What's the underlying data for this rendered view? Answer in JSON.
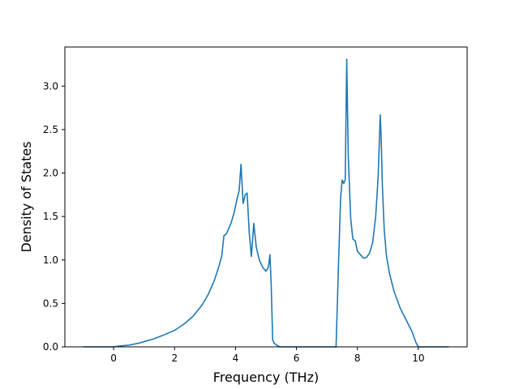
{
  "chart_data": {
    "type": "line",
    "title": "",
    "xlabel": "Frequency (THz)",
    "ylabel": "Density of States",
    "xlim": [
      -1.6,
      11.6
    ],
    "ylim": [
      0.0,
      3.45
    ],
    "grid": false,
    "legend": "none",
    "x_ticks": [
      0,
      2,
      4,
      6,
      8,
      10
    ],
    "x_tick_labels": [
      "0",
      "2",
      "4",
      "6",
      "8",
      "10"
    ],
    "y_ticks": [
      0.0,
      0.5,
      1.0,
      1.5,
      2.0,
      2.5,
      3.0
    ],
    "y_tick_labels": [
      "0.0",
      "0.5",
      "1.0",
      "1.5",
      "2.0",
      "2.5",
      "3.0"
    ],
    "series": [
      {
        "color": "#1f77b4",
        "x": [
          -1.0,
          -0.5,
          0.0,
          0.2,
          0.5,
          0.8,
          1.0,
          1.3,
          1.6,
          2.0,
          2.3,
          2.6,
          2.9,
          3.1,
          3.3,
          3.45,
          3.55,
          3.62,
          3.7,
          3.85,
          3.95,
          4.05,
          4.12,
          4.18,
          4.25,
          4.32,
          4.38,
          4.45,
          4.52,
          4.6,
          4.68,
          4.78,
          4.9,
          5.0,
          5.08,
          5.13,
          5.17,
          5.22,
          5.27,
          5.35,
          5.45,
          5.6,
          6.0,
          6.5,
          7.0,
          7.3,
          7.38,
          7.45,
          7.5,
          7.55,
          7.6,
          7.65,
          7.7,
          7.78,
          7.85,
          7.93,
          8.0,
          8.1,
          8.2,
          8.3,
          8.4,
          8.5,
          8.6,
          8.68,
          8.75,
          8.78,
          8.82,
          8.88,
          8.95,
          9.05,
          9.2,
          9.4,
          9.6,
          9.8,
          9.92,
          10.0,
          10.3,
          10.6,
          11.0
        ],
        "y": [
          0.0,
          0.0,
          0.0,
          0.01,
          0.02,
          0.04,
          0.06,
          0.09,
          0.13,
          0.19,
          0.26,
          0.35,
          0.48,
          0.6,
          0.76,
          0.92,
          1.05,
          1.28,
          1.3,
          1.42,
          1.54,
          1.7,
          1.8,
          2.1,
          1.65,
          1.75,
          1.77,
          1.32,
          1.04,
          1.42,
          1.15,
          1.0,
          0.91,
          0.87,
          0.92,
          1.06,
          0.72,
          0.08,
          0.04,
          0.02,
          0.0,
          0.0,
          0.0,
          0.0,
          0.0,
          0.0,
          0.95,
          1.72,
          1.92,
          1.88,
          1.92,
          3.31,
          2.2,
          1.48,
          1.24,
          1.22,
          1.1,
          1.06,
          1.02,
          1.03,
          1.08,
          1.2,
          1.5,
          1.95,
          2.67,
          2.4,
          1.85,
          1.35,
          1.06,
          0.85,
          0.64,
          0.45,
          0.31,
          0.17,
          0.05,
          0.0,
          0.0,
          0.0,
          0.0
        ]
      }
    ]
  }
}
